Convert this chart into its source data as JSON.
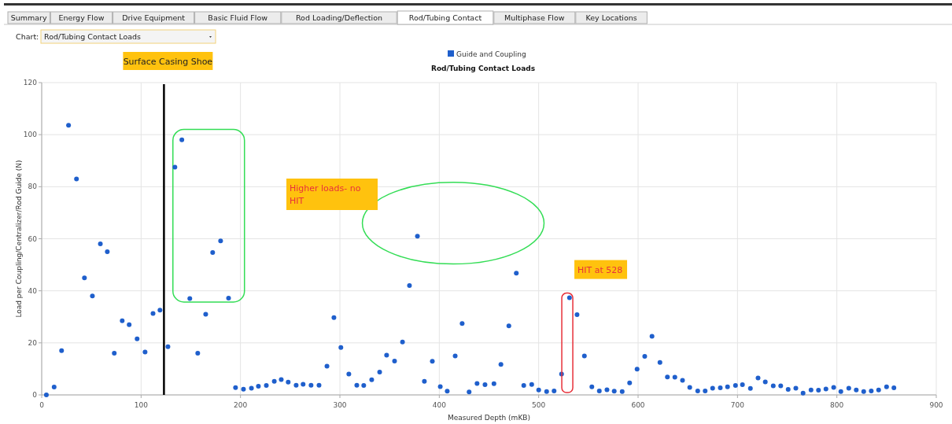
{
  "chart_data": {
    "type": "scatter",
    "title": "Rod/Tubing Contact Loads",
    "xlabel": "Measured Depth (mKB)",
    "ylabel": "Load per Coupling/Centralizer/Rod Guide (N)",
    "x": [
      4.7,
      12.5,
      20,
      27,
      35,
      43,
      51,
      59,
      66,
      73,
      81,
      88,
      96,
      104,
      112,
      119,
      127,
      134,
      141,
      149,
      157,
      165,
      172,
      180,
      188,
      195,
      203,
      211,
      218,
      226,
      234,
      241,
      248,
      256,
      263,
      271,
      279,
      287,
      294,
      301,
      309,
      317,
      324,
      332,
      340,
      347,
      355,
      363,
      370,
      378,
      385,
      393,
      401,
      408,
      416,
      423,
      430,
      438,
      446,
      455,
      462,
      470,
      477.5,
      485,
      493,
      500,
      508,
      515.5,
      523,
      531,
      538.6,
      546,
      553.5,
      561,
      568.7,
      576,
      584,
      591.5,
      599,
      606.7,
      614,
      622,
      629.5,
      637,
      644.7,
      652,
      660,
      667.5,
      675,
      682.7,
      690,
      698,
      705,
      713,
      720.7,
      728,
      736,
      743.5,
      751,
      758.7,
      766,
      774,
      781.5,
      789,
      796.8,
      804,
      812,
      819.5,
      827,
      834.6,
      842,
      850,
      857.4
    ],
    "series": [
      {
        "name": "Guide and Coupling",
        "color": "#1f5fcc",
        "values": [
          0,
          3,
          17,
          103.6,
          83,
          45,
          38,
          58,
          55,
          16,
          28.5,
          27,
          21.5,
          16.5,
          31.3,
          32.6,
          18.5,
          87.5,
          98,
          37,
          16,
          31,
          54.7,
          59.2,
          37.2,
          2.8,
          2.2,
          2.6,
          3.3,
          3.6,
          5.2,
          5.9,
          4.9,
          3.7,
          4.1,
          3.7,
          3.7,
          11,
          29.7,
          18.2,
          8,
          3.7,
          3.6,
          5.8,
          8.8,
          15.3,
          13,
          20.3,
          42,
          61,
          5.2,
          12.9,
          3.2,
          1.4,
          15,
          27.4,
          1.1,
          4.4,
          3.9,
          4.3,
          11.7,
          26.5,
          46.8,
          3.6,
          4,
          1.9,
          1.3,
          1.5,
          8,
          37.3,
          30.8,
          15,
          3.1,
          1.5,
          2,
          1.4,
          1.3,
          4.6,
          9.9,
          14.8,
          22.5,
          12.5,
          6.9,
          6.8,
          5.6,
          2.9,
          1.5,
          1.5,
          2.6,
          2.7,
          3.1,
          3.6,
          3.9,
          2.5,
          6.5,
          5,
          3.5,
          3.5,
          2.1,
          2.6,
          0.7,
          1.9,
          1.8,
          2.3,
          2.9,
          1.3,
          2.6,
          1.9,
          1.3,
          1.5,
          1.9,
          3.1,
          2.7
        ]
      }
    ],
    "xlim": [
      0,
      900
    ],
    "xticks": [
      0,
      100,
      200,
      300,
      400,
      500,
      600,
      700,
      800,
      900
    ],
    "ylim": [
      0,
      120
    ],
    "yticks": [
      0,
      20,
      40,
      60,
      80,
      100,
      120
    ],
    "grid": true,
    "legend": "top",
    "marker": "circle",
    "ref_lines": [
      {
        "axis": "x",
        "value": 123,
        "label": "Surface Casing Shoe",
        "color": "#000000"
      }
    ],
    "annotations": [
      "Higher loads- no HIT",
      {
        "text": "HIT at 528",
        "x": 528,
        "y": 37.3
      },
      "Summary",
      "Energy Flow",
      "Drive Equipment",
      "Basic Fluid Flow",
      "Rod Loading/Deflection",
      "Rod/Tubing Contact",
      "Multiphase Flow",
      "Key Locations",
      "Chart:",
      "Rod/Tubing Contact Loads"
    ]
  }
}
